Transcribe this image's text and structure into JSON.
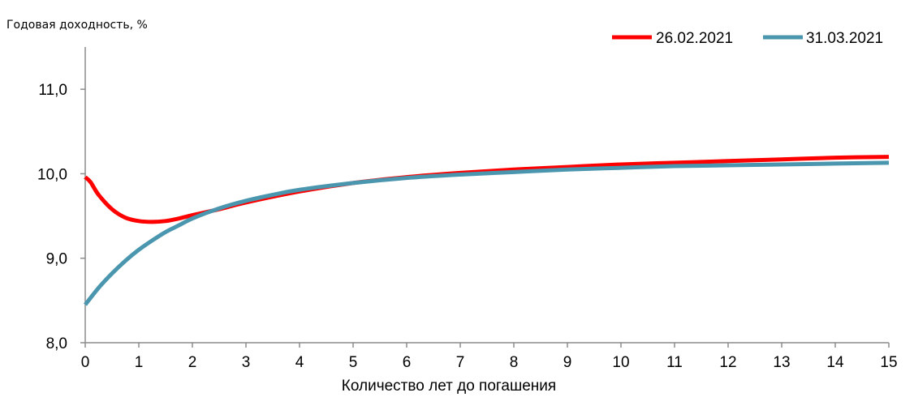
{
  "chart_data": {
    "type": "line",
    "title": "",
    "ylabel": "Годовая доходность, %",
    "xlabel": "Количество лет до погашения",
    "xlim": [
      0,
      15
    ],
    "ylim": [
      8.0,
      11.5
    ],
    "x_ticks": [
      0,
      1,
      2,
      3,
      4,
      5,
      6,
      7,
      8,
      9,
      10,
      11,
      12,
      13,
      14,
      15
    ],
    "y_ticks": [
      {
        "value": 8.0,
        "label": "8,0"
      },
      {
        "value": 9.0,
        "label": "9,0"
      },
      {
        "value": 10.0,
        "label": "10,0"
      },
      {
        "value": 11.0,
        "label": "11,0"
      }
    ],
    "grid": false,
    "legend_position": "top-right",
    "series": [
      {
        "name": "26.02.2021",
        "color": "#ff0000",
        "x": [
          0,
          0.1,
          0.25,
          0.5,
          0.75,
          1.0,
          1.25,
          1.5,
          1.75,
          2.0,
          2.5,
          3.0,
          4.0,
          5.0,
          6.0,
          7.0,
          8.0,
          9.0,
          10.0,
          11.0,
          12.0,
          13.0,
          14.0,
          15.0
        ],
        "y": [
          9.96,
          9.9,
          9.75,
          9.58,
          9.48,
          9.44,
          9.43,
          9.44,
          9.47,
          9.51,
          9.58,
          9.66,
          9.79,
          9.89,
          9.96,
          10.01,
          10.05,
          10.08,
          10.11,
          10.13,
          10.15,
          10.17,
          10.19,
          10.2
        ]
      },
      {
        "name": "31.03.2021",
        "color": "#4a96ae",
        "x": [
          0,
          0.25,
          0.5,
          0.75,
          1.0,
          1.25,
          1.5,
          1.75,
          2.0,
          2.5,
          3.0,
          3.5,
          4.0,
          5.0,
          6.0,
          7.0,
          8.0,
          9.0,
          10.0,
          11.0,
          12.0,
          13.0,
          14.0,
          15.0
        ],
        "y": [
          8.45,
          8.65,
          8.82,
          8.97,
          9.1,
          9.21,
          9.31,
          9.39,
          9.47,
          9.59,
          9.68,
          9.75,
          9.81,
          9.89,
          9.95,
          9.99,
          10.02,
          10.05,
          10.07,
          10.09,
          10.1,
          10.11,
          10.12,
          10.13
        ]
      }
    ]
  }
}
